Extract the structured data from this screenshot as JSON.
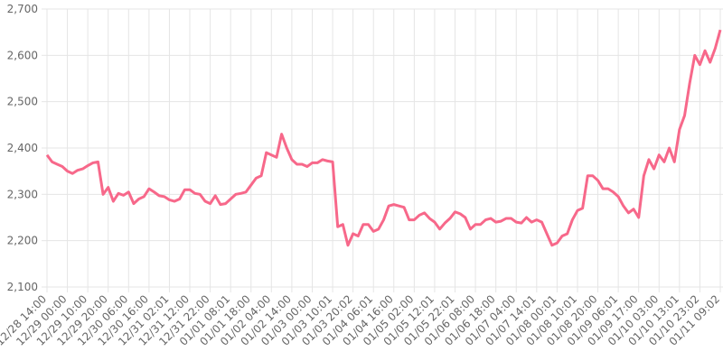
{
  "chart_data": {
    "type": "line",
    "categories": [
      "12/28 14:00",
      null,
      null,
      null,
      "12/29 00:00",
      null,
      null,
      null,
      "12/29 10:00",
      null,
      null,
      null,
      "12/29 20:00",
      null,
      null,
      null,
      "12/30 06:00",
      null,
      null,
      null,
      "12/30 16:00",
      null,
      null,
      null,
      "12/31 02:01",
      null,
      null,
      null,
      "12/31 12:00",
      null,
      null,
      null,
      "12/31 22:00",
      null,
      null,
      null,
      "01/01 08:01",
      null,
      null,
      null,
      "01/01 18:00",
      null,
      null,
      null,
      "01/02 04:00",
      null,
      null,
      null,
      "01/02 14:00",
      null,
      null,
      null,
      "01/03 00:00",
      null,
      null,
      null,
      "01/03 10:01",
      null,
      null,
      null,
      "01/03 20:02",
      null,
      null,
      null,
      "01/04 06:01",
      null,
      null,
      null,
      "01/04 16:00",
      null,
      null,
      null,
      "01/05 02:00",
      null,
      null,
      null,
      "01/05 12:01",
      null,
      null,
      null,
      "01/05 22:01",
      null,
      null,
      null,
      "01/06 08:00",
      null,
      null,
      null,
      "01/06 18:00",
      null,
      null,
      null,
      "01/07 04:00",
      null,
      null,
      null,
      "01/07 14:01",
      null,
      null,
      null,
      "01/08 00:01",
      null,
      null,
      null,
      "01/08 10:01",
      null,
      null,
      null,
      "01/08 20:00",
      null,
      null,
      null,
      "01/09 06:01",
      null,
      null,
      null,
      "01/09 17:00",
      null,
      null,
      null,
      "01/10 03:00",
      null,
      null,
      null,
      "01/10 13:01",
      null,
      null,
      null,
      "01/10 23:02",
      null,
      null,
      null,
      "01/11 09:02"
    ],
    "values": [
      2385,
      2370,
      2365,
      2360,
      2350,
      2345,
      2352,
      2355,
      2362,
      2368,
      2370,
      2300,
      2315,
      2285,
      2302,
      2298,
      2305,
      2280,
      2290,
      2295,
      2312,
      2305,
      2297,
      2295,
      2288,
      2285,
      2290,
      2310,
      2310,
      2302,
      2300,
      2285,
      2280,
      2297,
      2278,
      2280,
      2290,
      2300,
      2302,
      2305,
      2320,
      2335,
      2340,
      2390,
      2385,
      2380,
      2430,
      2400,
      2375,
      2365,
      2365,
      2360,
      2368,
      2368,
      2375,
      2372,
      2370,
      2230,
      2235,
      2190,
      2215,
      2210,
      2235,
      2235,
      2220,
      2225,
      2245,
      2275,
      2278,
      2275,
      2272,
      2245,
      2245,
      2255,
      2260,
      2248,
      2240,
      2225,
      2238,
      2248,
      2262,
      2258,
      2250,
      2225,
      2235,
      2235,
      2245,
      2248,
      2240,
      2242,
      2248,
      2248,
      2240,
      2238,
      2250,
      2240,
      2245,
      2240,
      2215,
      2190,
      2195,
      2210,
      2215,
      2245,
      2265,
      2270,
      2340,
      2340,
      2330,
      2312,
      2312,
      2305,
      2295,
      2275,
      2260,
      2268,
      2250,
      2340,
      2375,
      2355,
      2385,
      2370,
      2400,
      2370,
      2440,
      2470,
      2540,
      2600,
      2580,
      2610,
      2585,
      2615,
      2655
    ],
    "color": "#f7688a",
    "ylim": [
      2100,
      2700
    ],
    "yticks": [
      {
        "value": 2100,
        "label": "2,100"
      },
      {
        "value": 2200,
        "label": "2,200"
      },
      {
        "value": 2300,
        "label": "2,300"
      },
      {
        "value": 2400,
        "label": "2,400"
      },
      {
        "value": 2500,
        "label": "2,500"
      },
      {
        "value": 2600,
        "label": "2,600"
      },
      {
        "value": 2700,
        "label": "2,700"
      }
    ],
    "grid": true
  }
}
